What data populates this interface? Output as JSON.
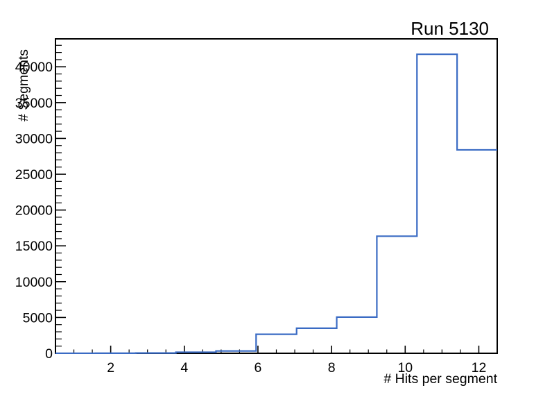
{
  "title": "Run 5130",
  "chart_data": {
    "type": "bar",
    "style": "step-histogram",
    "title": "Run 5130",
    "xlabel": "# Hits per segment",
    "ylabel": "# Segments",
    "xlim": [
      0.5,
      12.5
    ],
    "ylim": [
      0,
      43900
    ],
    "bin_edges": [
      0.5,
      1.59,
      2.68,
      3.77,
      4.86,
      5.95,
      7.05,
      8.14,
      9.23,
      10.32,
      11.41,
      12.5
    ],
    "values": [
      5,
      15,
      40,
      150,
      320,
      2650,
      3500,
      5050,
      16350,
      41750,
      28400
    ],
    "x_major_ticks": [
      2,
      4,
      6,
      8,
      10,
      12
    ],
    "x_minor_tick_step": 0.5,
    "y_major_ticks": [
      0,
      5000,
      10000,
      15000,
      20000,
      25000,
      30000,
      35000,
      40000
    ],
    "y_minor_tick_step": 1000,
    "grid": false,
    "legend": false,
    "line_color": "#3a6bc4",
    "axis_color": "#000000",
    "background_color": "#ffffff"
  }
}
